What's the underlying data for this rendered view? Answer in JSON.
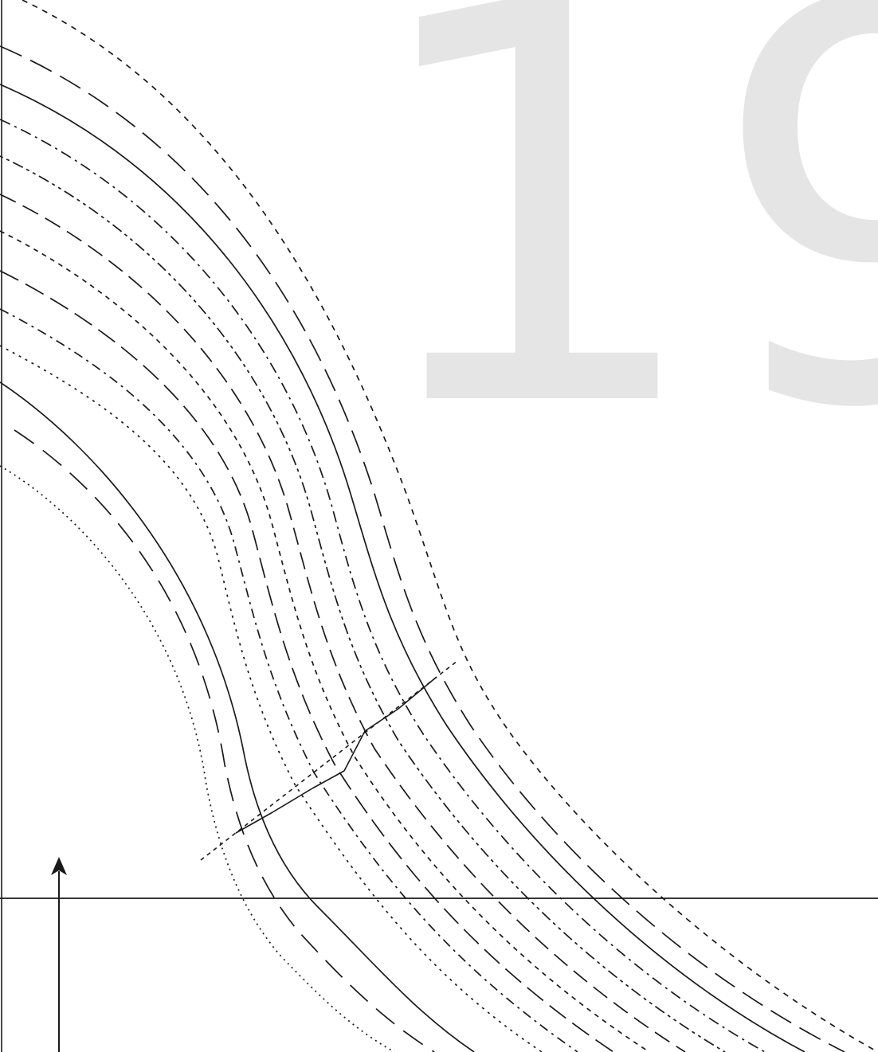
{
  "piece_number": "19",
  "watermark_color": "#e5e5e5",
  "line_color": "#1a1a1a",
  "annotations": {
    "grainline": "arrow-up"
  }
}
